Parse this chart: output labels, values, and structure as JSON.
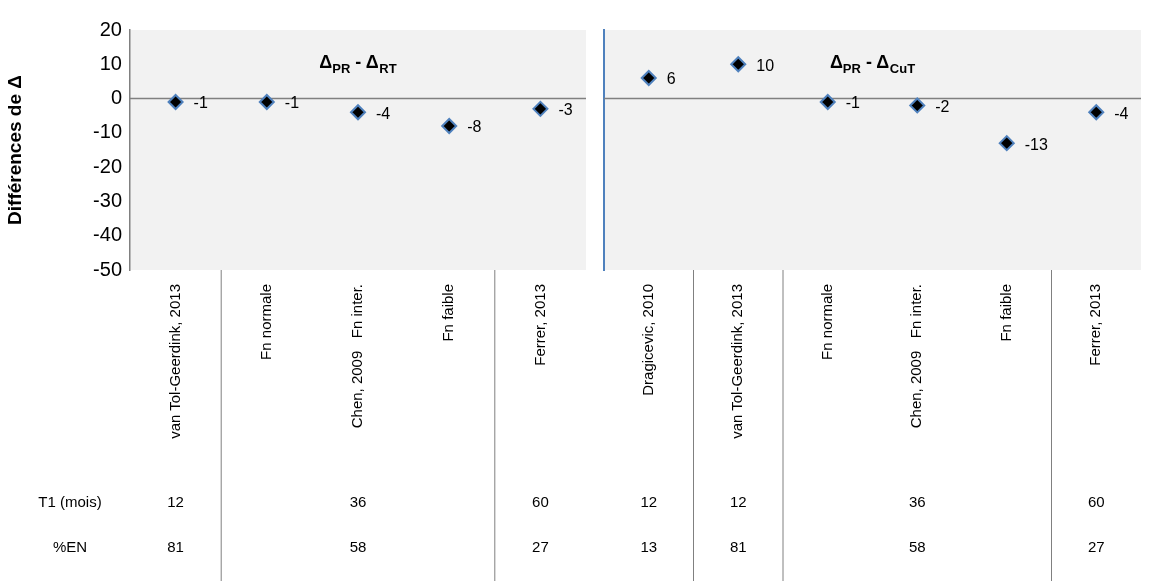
{
  "chart_data": [
    {
      "type": "scatter",
      "title": "Δ$_{PR}$ - Δ$_{RT}$",
      "ylabel": "Différences de Δ",
      "categories": [
        "van Tol-Geerdink, 2013",
        "Fn normale",
        "Chen, 2009   Fn inter.",
        "Fn faible",
        "Ferrer, 2013"
      ],
      "series": [
        {
          "color": "#000000",
          "values": [
            -1,
            -1,
            -4,
            -8,
            -3
          ]
        }
      ],
      "ylim": [
        -50,
        20
      ],
      "yticks": [
        -50,
        -40,
        -30,
        -20,
        -10,
        0,
        10,
        20
      ],
      "marker": "diamond",
      "data_labels": true,
      "grid": false,
      "legend": false,
      "ref_lines": [
        {
          "axis": "y",
          "value": 0,
          "color": "#808080"
        }
      ],
      "annotations": [
        "T1 (mois)",
        "%EN",
        "12",
        "36",
        "60",
        "81",
        "58",
        "27"
      ]
    },
    {
      "type": "scatter",
      "title": "Δ$_{PR}$ - Δ$_{CuT}$",
      "categories": [
        "Dragicevic, 2010",
        "van Tol-Geerdink, 2013",
        "Fn normale",
        "Chen, 2009   Fn inter.",
        "Fn faible",
        "Ferrer, 2013"
      ],
      "series": [
        {
          "color": "#000000",
          "values": [
            6,
            10,
            -1,
            -2,
            -13,
            -4
          ]
        }
      ],
      "ylim": [
        -50,
        20
      ],
      "yticks": [
        -50,
        -40,
        -30,
        -20,
        -10,
        0,
        10,
        20
      ],
      "tick_labels": "x",
      "marker": "diamond",
      "data_labels": true,
      "grid": false,
      "legend": false,
      "ref_lines": [
        {
          "axis": "y",
          "value": 0,
          "color": "#808080"
        }
      ],
      "annotations": [
        "12",
        "12",
        "36",
        "60",
        "13",
        "81",
        "58",
        "27"
      ]
    }
  ]
}
